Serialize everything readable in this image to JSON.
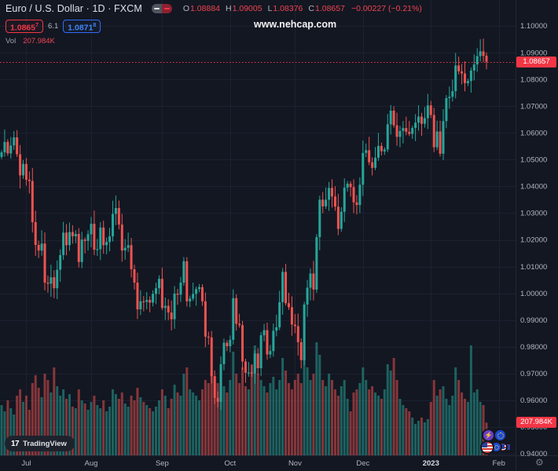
{
  "header": {
    "title": "Euro / U.S. Dollar · 1D · FXCM",
    "ohlc": {
      "o_label": "O",
      "o_value": "1.08884",
      "h_label": "H",
      "h_value": "1.09005",
      "l_label": "L",
      "l_value": "1.08376",
      "c_label": "C",
      "c_value": "1.08657",
      "change": "−0.00227 (−0.21%)"
    },
    "bid": {
      "main": "1.0865",
      "sup": "7"
    },
    "spread": "6.1",
    "ask": {
      "main": "1.0871",
      "sup": "8"
    },
    "vol_label": "Vol",
    "vol_value": "207.984K"
  },
  "watermark": "www.nehcap.com",
  "footer": {
    "logo_glyph": "17",
    "logo_text": "TradingView",
    "gear_glyph": "⚙",
    "lightning_glyph": "⚡"
  },
  "axis": {
    "last_price": "1.08657",
    "last_volume": "207.984K",
    "price_labels": [
      "1.10000",
      "1.09000",
      "1.08000",
      "1.07000",
      "1.06000",
      "1.05000",
      "1.04000",
      "1.03000",
      "1.02000",
      "1.01000",
      "1.00000",
      "0.99000",
      "0.98000",
      "0.97000",
      "0.96000",
      "0.95000",
      "0.94000"
    ],
    "time_labels": [
      {
        "label": "Jul",
        "index": 8
      },
      {
        "label": "Aug",
        "index": 29
      },
      {
        "label": "Sep",
        "index": 52
      },
      {
        "label": "Oct",
        "index": 74
      },
      {
        "label": "Nov",
        "index": 95
      },
      {
        "label": "Dec",
        "index": 117
      },
      {
        "label": "2023",
        "index": 139,
        "year": true
      },
      {
        "label": "Feb",
        "index": 161
      }
    ]
  },
  "colors": {
    "up": "#26a69a",
    "down": "#ef5350",
    "accent_red": "#f23645",
    "accent_blue": "#2e6df6",
    "bg": "#131722",
    "grid": "#1c2130",
    "axis_text": "#b2b5be",
    "year_text": "#d8dbe3"
  },
  "chart_data": {
    "type": "candlestick",
    "title": "Euro / U.S. Dollar, 1D, FXCM with volume",
    "price_axis": {
      "min": 0.94,
      "max": 1.1,
      "tick_step": 0.01
    },
    "x_axis_months": [
      "Jul",
      "Aug",
      "Sep",
      "Oct",
      "Nov",
      "Dec",
      "2023",
      "Feb"
    ],
    "legend": "Vol",
    "last_candle_ohlc": {
      "open": 1.08884,
      "high": 1.09005,
      "low": 1.08376,
      "close": 1.08657
    },
    "change_abs": -0.00227,
    "change_pct": -0.21,
    "last_volume_k": 207.984,
    "first_open": 1.051,
    "closes": [
      1.0527,
      1.0566,
      1.0523,
      1.0553,
      1.0583,
      1.052,
      1.0441,
      1.0484,
      1.0425,
      1.042,
      1.0266,
      1.0181,
      1.016,
      1.0186,
      1.004,
      1.0036,
      1.006,
      1.0019,
      1.0088,
      1.0143,
      1.0227,
      1.018,
      1.0229,
      1.0213,
      1.0222,
      1.0117,
      1.0201,
      1.0196,
      1.0221,
      1.026,
      1.0163,
      1.0165,
      1.0246,
      1.018,
      1.0192,
      1.0213,
      1.0297,
      1.0319,
      1.0257,
      1.016,
      1.017,
      1.018,
      1.009,
      1.004,
      0.994,
      0.997,
      0.9968,
      0.9975,
      0.9965,
      0.9998,
      1.0019,
      1.0054,
      0.9945,
      0.9953,
      0.9928,
      0.9903,
      0.9999,
      0.9995,
      1.004,
      1.012,
      0.997,
      0.998,
      0.9998,
      1.0016,
      1.0023,
      0.997,
      0.9838,
      0.9835,
      0.969,
      0.9609,
      0.9594,
      0.9735,
      0.9815,
      0.9802,
      0.9826,
      0.9982,
      0.9886,
      0.9881,
      0.9745,
      0.9703,
      0.9704,
      0.97,
      0.9775,
      0.972,
      0.9843,
      0.9862,
      0.9771,
      0.9784,
      0.986,
      0.9873,
      0.9967,
      1.008,
      0.9963,
      0.9948,
      0.9883,
      0.9877,
      0.9817,
      0.975,
      0.9958,
      1.0021,
      1.0074,
      1.0014,
      1.021,
      1.035,
      1.0325,
      1.035,
      1.0394,
      1.0362,
      1.0324,
      1.0241,
      1.0305,
      1.0395,
      1.041,
      1.0397,
      1.034,
      1.033,
      1.0406,
      1.0525,
      1.0535,
      1.049,
      1.0469,
      1.0507,
      1.0551,
      1.0531,
      1.0538,
      1.0632,
      1.0683,
      1.0628,
      1.0585,
      1.0607,
      1.0618,
      1.0604,
      1.0596,
      1.0618,
      1.0638,
      1.0661,
      1.0634,
      1.0655,
      1.0703,
      1.0667,
      1.0546,
      1.0605,
      1.0522,
      1.0644,
      1.073,
      1.0735,
      1.0756,
      1.0852,
      1.083,
      1.0822,
      1.0786,
      1.0794,
      1.0833,
      1.0856,
      1.0887,
      1.0905,
      1.0888,
      1.0866
    ],
    "volumes_k": [
      320,
      280,
      350,
      300,
      260,
      380,
      420,
      340,
      380,
      290,
      460,
      510,
      430,
      370,
      520,
      480,
      400,
      560,
      440,
      380,
      420,
      360,
      390,
      310,
      300,
      420,
      350,
      330,
      290,
      340,
      380,
      320,
      300,
      350,
      280,
      310,
      420,
      390,
      360,
      400,
      330,
      310,
      380,
      350,
      430,
      370,
      340,
      320,
      300,
      280,
      310,
      350,
      420,
      380,
      300,
      360,
      450,
      400,
      380,
      520,
      560,
      420,
      400,
      380,
      350,
      420,
      480,
      460,
      540,
      500,
      460,
      520,
      440,
      400,
      480,
      660,
      520,
      460,
      560,
      440,
      420,
      580,
      700,
      520,
      480,
      440,
      400,
      460,
      500,
      420,
      480,
      620,
      540,
      460,
      420,
      480,
      520,
      460,
      680,
      560,
      480,
      520,
      720,
      640,
      480,
      440,
      520,
      480,
      420,
      380,
      440,
      480,
      360,
      280,
      400,
      420,
      460,
      560,
      480,
      420,
      440,
      400,
      380,
      360,
      420,
      580,
      540,
      620,
      480,
      360,
      320,
      300,
      280,
      240,
      200,
      220,
      240,
      210,
      230,
      340,
      480,
      380,
      420,
      440,
      360,
      320,
      380,
      560,
      480,
      400,
      360,
      340,
      700,
      400,
      420,
      340,
      320,
      208
    ]
  }
}
